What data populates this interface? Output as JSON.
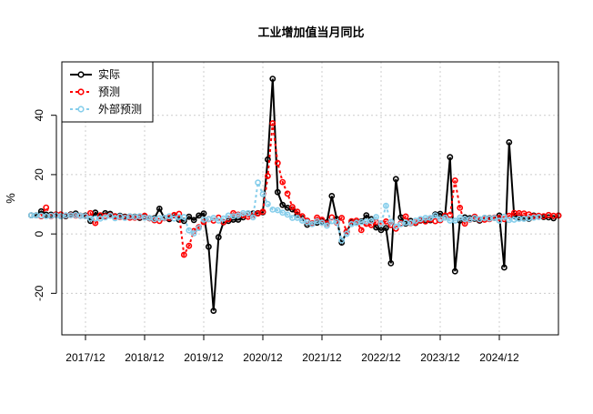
{
  "chart_data": {
    "type": "line",
    "title": "工业增加值当月同比",
    "xlabel": "",
    "ylabel": "%",
    "ylim": [
      -34,
      58
    ],
    "yticks": [
      -20,
      0,
      20,
      40
    ],
    "xticks": [
      "2017/12",
      "2018/12",
      "2019/12",
      "2020/12",
      "2021/12",
      "2022/12",
      "2023/12",
      "2024/12"
    ],
    "x_start": "2017/01",
    "grid": true,
    "legend_position": "top-left",
    "series": [
      {
        "name": "实际",
        "color": "#000000",
        "values": [
          6.3,
          6.3,
          7.6,
          6.5,
          6.5,
          6.4,
          6.0,
          6.0,
          6.6,
          6.9,
          6.1,
          6.2,
          4.4,
          7.2,
          6.0,
          7.0,
          6.8,
          6.0,
          6.1,
          5.8,
          5.9,
          5.8,
          5.4,
          5.7,
          5.3,
          5.3,
          8.5,
          5.4,
          5.0,
          6.3,
          4.8,
          4.4,
          5.8,
          4.7,
          6.2,
          6.9,
          -4.3,
          -25.9,
          -1.1,
          3.9,
          4.4,
          4.8,
          4.8,
          5.6,
          6.9,
          6.9,
          7.0,
          7.3,
          25.1,
          52.3,
          14.1,
          9.8,
          8.8,
          8.3,
          6.4,
          5.3,
          3.1,
          3.5,
          3.8,
          4.3,
          3.9,
          12.8,
          5.0,
          -2.9,
          0.7,
          3.9,
          3.8,
          4.2,
          6.3,
          5.0,
          2.2,
          1.3,
          2.0,
          -9.9,
          18.5,
          5.6,
          3.5,
          4.4,
          3.7,
          4.5,
          4.5,
          4.6,
          6.6,
          6.8,
          6.1,
          25.9,
          -12.6,
          4.5,
          5.6,
          5.3,
          5.1,
          4.5,
          5.4,
          5.3,
          5.4,
          6.2,
          -11.3,
          30.9,
          6.1,
          5.6,
          5.3,
          5.1,
          6.2,
          5.8,
          5.7,
          5.6,
          5.3,
          6.2
        ]
      },
      {
        "name": "预测",
        "color": "#ff0000",
        "values": [
          null,
          null,
          6.0,
          8.9,
          6.0,
          6.6,
          6.6,
          6.2,
          6.4,
          6.2,
          6.1,
          6.0,
          7.0,
          3.7,
          6.3,
          6.0,
          6.3,
          5.9,
          5.7,
          5.6,
          5.5,
          5.5,
          5.7,
          6.1,
          5.3,
          4.6,
          4.4,
          5.3,
          5.4,
          6.4,
          6.8,
          -7.0,
          -4.0,
          1.0,
          2.3,
          4.0,
          5.0,
          4.5,
          5.5,
          4.0,
          5.0,
          7.0,
          6.5,
          6.3,
          5.8,
          6.3,
          6.9,
          7.5,
          19.5,
          37.3,
          23.9,
          17.5,
          13.6,
          9.1,
          7.5,
          6.0,
          4.5,
          3.5,
          5.5,
          4.8,
          3.5,
          5.6,
          3.8,
          5.4,
          0.8,
          4.3,
          4.5,
          1.3,
          3.4,
          3.0,
          4.0,
          3.5,
          4.2,
          3.0,
          1.8,
          3.6,
          5.9,
          3.6,
          3.8,
          4.6,
          4.2,
          4.9,
          4.3,
          4.6,
          6.2,
          6.4,
          18.0,
          8.8,
          3.5,
          4.8,
          5.8,
          4.8,
          4.8,
          5.0,
          5.5,
          5.4,
          5.0,
          6.1,
          7.1,
          7.0,
          6.9,
          6.6,
          6.0,
          6.1,
          6.0,
          6.4,
          6.1,
          6.2
        ]
      },
      {
        "name": "外部预测",
        "color": "#87ceeb",
        "values": [
          6.3,
          6.3,
          6.2,
          6.0,
          6.1,
          6.3,
          6.0,
          6.3,
          6.3,
          6.4,
          6.1,
          6.0,
          5.2,
          5.2,
          5.2,
          5.6,
          6.1,
          5.3,
          5.9,
          5.4,
          5.9,
          5.7,
          6.0,
          5.5,
          5.4,
          5.0,
          5.3,
          5.4,
          6.0,
          5.2,
          5.7,
          5.7,
          1.2,
          0.2,
          2.0,
          4.8,
          5.0,
          5.4,
          4.5,
          5.2,
          6.2,
          6.0,
          6.3,
          7.0,
          7.0,
          5.6,
          17.3,
          13.4,
          10.1,
          8.2,
          8.0,
          7.2,
          6.5,
          5.4,
          5.4,
          4.5,
          4.0,
          3.3,
          4.3,
          3.8,
          2.8,
          4.3,
          4.0,
          -2.2,
          0.0,
          3.3,
          3.7,
          4.0,
          4.2,
          4.4,
          5.7,
          3.4,
          9.5,
          4.1,
          2.5,
          3.3,
          3.8,
          3.7,
          4.5,
          5.0,
          5.4,
          5.4,
          6.3,
          5.0,
          5.5,
          4.5,
          4.5,
          5.5,
          5.0,
          4.9,
          5.4,
          5.0,
          5.4,
          5.2,
          5.4,
          4.5,
          5.8,
          4.7,
          4.8,
          5.1,
          5.1,
          5.3,
          5.5,
          5.7
        ]
      }
    ]
  }
}
